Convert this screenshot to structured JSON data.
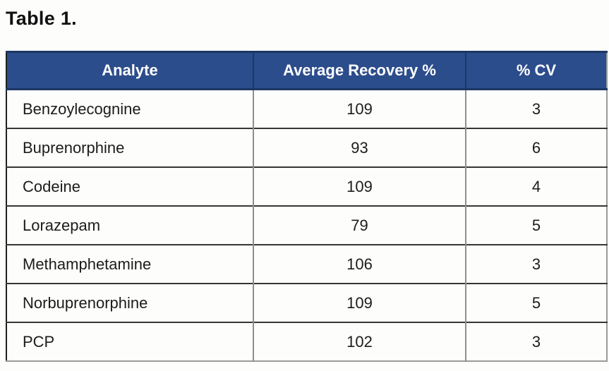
{
  "title": "Table 1.",
  "colors": {
    "header_bg": "#2c4d8c",
    "header_border": "#1d3765",
    "header_text": "#ffffff",
    "row_line": "#363636",
    "column_line_body": "#8f8f8f",
    "body_text": "#1c1c1c",
    "page_bg": "#fdfdfb"
  },
  "table": {
    "columns": [
      "Analyte",
      "Average Recovery %",
      "% CV"
    ],
    "rows": [
      {
        "analyte": "Benzoylecognine",
        "recovery": "109",
        "cv": "3"
      },
      {
        "analyte": "Buprenorphine",
        "recovery": "93",
        "cv": "6"
      },
      {
        "analyte": "Codeine",
        "recovery": "109",
        "cv": "4"
      },
      {
        "analyte": "Lorazepam",
        "recovery": "79",
        "cv": "5"
      },
      {
        "analyte": "Methamphetamine",
        "recovery": "106",
        "cv": "3"
      },
      {
        "analyte": "Norbuprenorphine",
        "recovery": "109",
        "cv": "5"
      },
      {
        "analyte": "PCP",
        "recovery": "102",
        "cv": "3"
      }
    ]
  },
  "chart_data": {
    "type": "table",
    "title": "Table 1.",
    "columns": [
      "Analyte",
      "Average Recovery %",
      "% CV"
    ],
    "categories": [
      "Benzoylecognine",
      "Buprenorphine",
      "Codeine",
      "Lorazepam",
      "Methamphetamine",
      "Norbuprenorphine",
      "PCP"
    ],
    "series": [
      {
        "name": "Average Recovery %",
        "values": [
          109,
          93,
          109,
          79,
          106,
          109,
          102
        ]
      },
      {
        "name": "% CV",
        "values": [
          3,
          6,
          4,
          5,
          3,
          5,
          3
        ]
      }
    ]
  }
}
